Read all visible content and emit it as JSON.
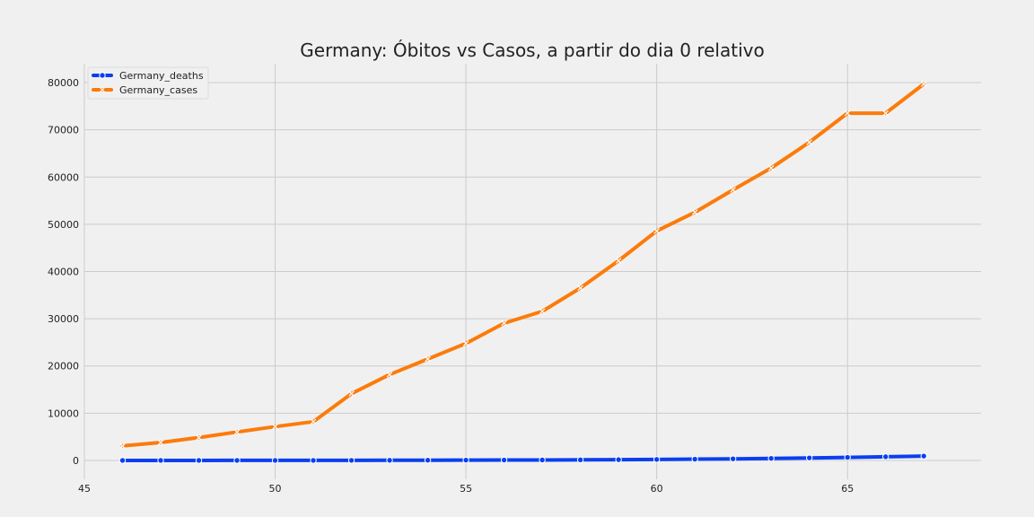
{
  "chart_data": {
    "type": "line",
    "title": "Germany: Óbitos vs Casos, a partir do dia 0 relativo",
    "xlabel": "",
    "ylabel": "",
    "xlim": [
      45,
      68.5
    ],
    "ylim": [
      -4000,
      84000
    ],
    "xticks": [
      45,
      50,
      55,
      60,
      65
    ],
    "yticks": [
      0,
      10000,
      20000,
      30000,
      40000,
      50000,
      60000,
      70000,
      80000
    ],
    "grid": true,
    "legend_position": "top-left",
    "x": [
      46,
      47,
      48,
      49,
      50,
      51,
      52,
      53,
      54,
      55,
      56,
      57,
      58,
      59,
      60,
      61,
      62,
      63,
      64,
      65,
      66,
      67
    ],
    "series": [
      {
        "name": "Germany_deaths",
        "color": "#0a3ff0",
        "marker": "circle",
        "values": [
          0,
          0,
          0,
          3,
          7,
          9,
          11,
          28,
          44,
          68,
          84,
          94,
          123,
          157,
          206,
          267,
          342,
          433,
          533,
          645,
          775,
          920
        ]
      },
      {
        "name": "Germany_cases",
        "color": "#fc7b0a",
        "marker": "x",
        "values": [
          3062,
          3795,
          4838,
          6012,
          7156,
          8198,
          14138,
          18187,
          21463,
          24774,
          29056,
          31554,
          36508,
          42288,
          48582,
          52547,
          57298,
          61913,
          67366,
          73522,
          73522,
          79696
        ]
      }
    ]
  }
}
